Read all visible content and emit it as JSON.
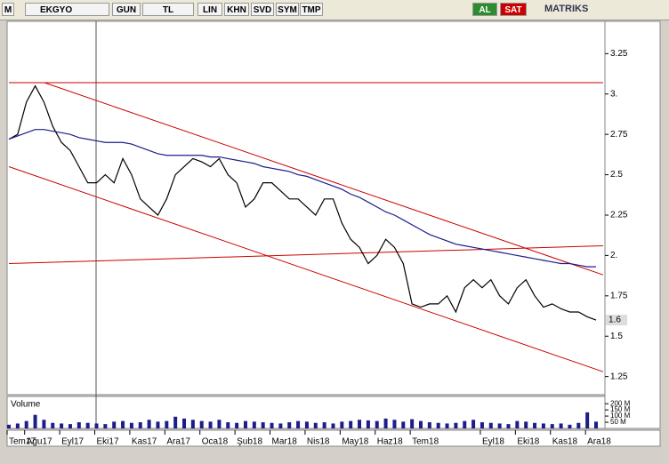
{
  "toolbar": {
    "symbol": "EKGYO",
    "buttons": [
      "GUN",
      "TL",
      "LIN",
      "KHN",
      "SVD",
      "SYM",
      "TMP"
    ],
    "buy": "AL",
    "sell": "SAT",
    "brand": "MATRIKS"
  },
  "chart_data": {
    "type": "line",
    "categories": [
      "Tem17",
      null,
      "Ağu17",
      null,
      null,
      null,
      "Eyl17",
      null,
      null,
      null,
      "Eki17",
      null,
      null,
      null,
      "Kas17",
      null,
      null,
      null,
      "Ara17",
      null,
      null,
      null,
      "Oca18",
      null,
      null,
      null,
      "Şub18",
      null,
      null,
      null,
      "Mar18",
      null,
      null,
      null,
      "Nis18",
      null,
      null,
      null,
      "May18",
      null,
      null,
      null,
      "Haz18",
      null,
      null,
      null,
      "Tem18",
      null,
      null,
      null,
      null,
      null,
      null,
      null,
      "Eyl18",
      null,
      null,
      null,
      "Eki18",
      null,
      null,
      null,
      "Kas18",
      null,
      null,
      null,
      "Ara18",
      null
    ],
    "series": [
      {
        "color": "#000000",
        "values": [
          2.72,
          2.75,
          2.95,
          3.05,
          2.95,
          2.8,
          2.7,
          2.65,
          2.55,
          2.45,
          2.45,
          2.5,
          2.45,
          2.6,
          2.5,
          2.35,
          2.3,
          2.25,
          2.35,
          2.5,
          2.55,
          2.6,
          2.58,
          2.55,
          2.6,
          2.5,
          2.45,
          2.3,
          2.35,
          2.45,
          2.45,
          2.4,
          2.35,
          2.35,
          2.3,
          2.25,
          2.35,
          2.35,
          2.2,
          2.1,
          2.05,
          1.95,
          2.0,
          2.1,
          2.05,
          1.95,
          1.7,
          1.68,
          1.7,
          1.7,
          1.75,
          1.65,
          1.8,
          1.85,
          1.8,
          1.85,
          1.75,
          1.7,
          1.8,
          1.85,
          1.75,
          1.68,
          1.7,
          1.67,
          1.65,
          1.65,
          1.62,
          1.6
        ]
      },
      {
        "color": "#1c1c8a",
        "values": [
          2.72,
          2.74,
          2.76,
          2.78,
          2.78,
          2.77,
          2.76,
          2.75,
          2.73,
          2.72,
          2.71,
          2.7,
          2.7,
          2.7,
          2.69,
          2.67,
          2.65,
          2.63,
          2.62,
          2.62,
          2.62,
          2.62,
          2.62,
          2.61,
          2.61,
          2.6,
          2.59,
          2.58,
          2.57,
          2.55,
          2.54,
          2.53,
          2.52,
          2.5,
          2.49,
          2.47,
          2.45,
          2.43,
          2.41,
          2.38,
          2.36,
          2.33,
          2.3,
          2.27,
          2.25,
          2.22,
          2.19,
          2.16,
          2.13,
          2.11,
          2.09,
          2.07,
          2.06,
          2.05,
          2.04,
          2.03,
          2.02,
          2.01,
          2.0,
          1.99,
          1.98,
          1.97,
          1.96,
          1.95,
          1.95,
          1.94,
          1.93,
          1.93
        ]
      }
    ],
    "trendlines": {
      "color": "#cc0000",
      "lines": [
        {
          "x": [
            0,
            67.8
          ],
          "y": [
            3.07,
            3.07
          ]
        },
        {
          "x": [
            4.06,
            67.8
          ],
          "y": [
            3.07,
            1.88
          ]
        },
        {
          "x": [
            0,
            67.8
          ],
          "y": [
            2.55,
            1.28
          ]
        },
        {
          "x": [
            0,
            67.8
          ],
          "y": [
            1.95,
            2.06
          ]
        }
      ]
    },
    "ylim": [
      1.16,
      3.45
    ],
    "yticks": [
      1.25,
      1.5,
      1.75,
      {
        "value": 2,
        "label": "2."
      },
      2.25,
      2.5,
      2.75,
      {
        "value": 3,
        "label": "3."
      },
      3.25
    ],
    "volume": {
      "name": "Volume",
      "color": "#1c1c8a",
      "values": [
        30,
        40,
        60,
        110,
        70,
        45,
        40,
        35,
        50,
        45,
        40,
        35,
        55,
        60,
        45,
        50,
        70,
        55,
        60,
        95,
        80,
        70,
        60,
        55,
        70,
        50,
        45,
        60,
        55,
        50,
        45,
        40,
        50,
        60,
        55,
        45,
        50,
        40,
        55,
        60,
        70,
        65,
        60,
        80,
        70,
        55,
        75,
        60,
        50,
        45,
        40,
        45,
        60,
        70,
        50,
        45,
        40,
        35,
        60,
        55,
        45,
        40,
        35,
        40,
        30,
        45,
        130,
        55
      ],
      "ylim": [
        0,
        230
      ],
      "yticks": [
        {
          "value": 50,
          "label": "50 M"
        },
        {
          "value": 100,
          "label": "100 M"
        },
        {
          "value": 150,
          "label": "150 M"
        },
        {
          "value": 200,
          "label": "200 M"
        }
      ]
    }
  }
}
